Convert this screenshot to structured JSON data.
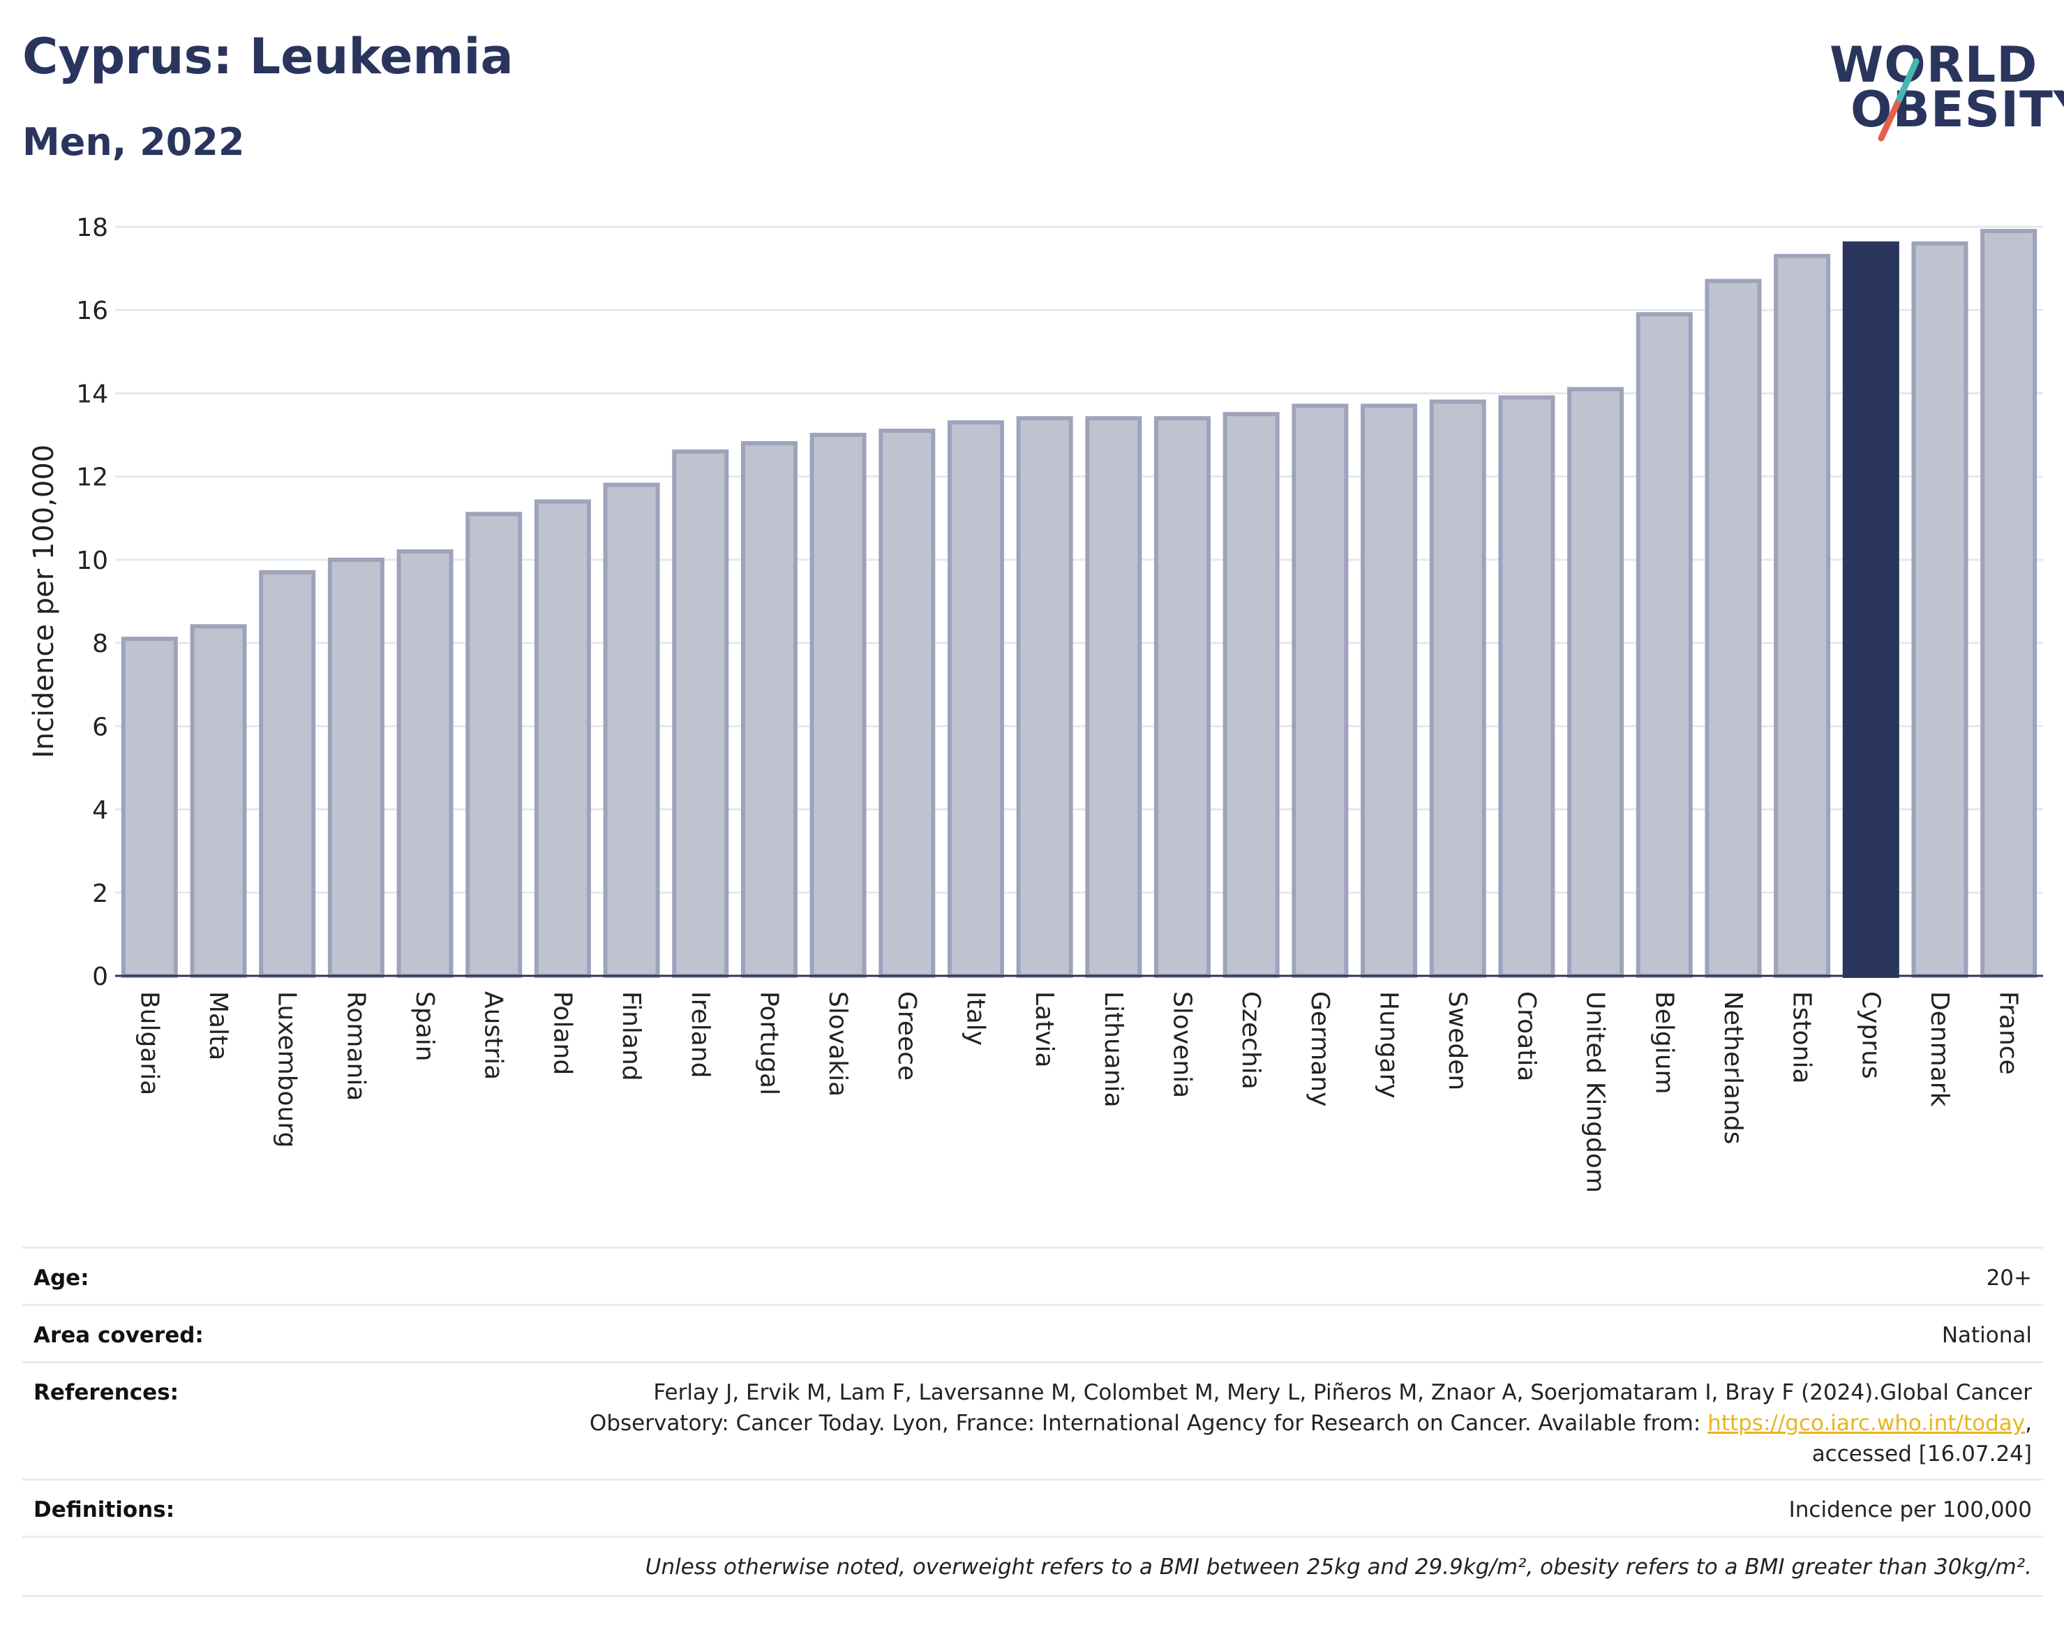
{
  "header": {
    "title": "Cyprus: Leukemia",
    "subtitle": "Men, 2022"
  },
  "logo": {
    "line1": "WORLD",
    "line2": "OBESITY",
    "slash_colors": [
      "#45b8b3",
      "#e35f4e"
    ]
  },
  "colors": {
    "bar_fill": "#bfc3d0",
    "bar_stroke": "#9ea3bb",
    "highlight": "#2a355e",
    "grid": "#e6e8ee"
  },
  "chart_data": {
    "type": "bar",
    "ylabel": "Incidence per 100,000",
    "ylim": [
      0,
      18
    ],
    "yticks": [
      0,
      2,
      4,
      6,
      8,
      10,
      12,
      14,
      16,
      18
    ],
    "grid": true,
    "highlight": "Cyprus",
    "categories": [
      "Bulgaria",
      "Malta",
      "Luxembourg",
      "Romania",
      "Spain",
      "Austria",
      "Poland",
      "Finland",
      "Ireland",
      "Portugal",
      "Slovakia",
      "Greece",
      "Italy",
      "Latvia",
      "Lithuania",
      "Slovenia",
      "Czechia",
      "Germany",
      "Hungary",
      "Sweden",
      "Croatia",
      "United Kingdom",
      "Belgium",
      "Netherlands",
      "Estonia",
      "Cyprus",
      "Denmark",
      "France"
    ],
    "values": [
      8.1,
      8.4,
      9.7,
      10.0,
      10.2,
      11.1,
      11.4,
      11.8,
      12.6,
      12.8,
      13.0,
      13.1,
      13.3,
      13.4,
      13.4,
      13.4,
      13.5,
      13.7,
      13.7,
      13.8,
      13.9,
      14.1,
      15.9,
      16.7,
      17.3,
      17.6,
      17.6,
      17.9
    ]
  },
  "meta": {
    "age_label": "Age:",
    "age_value": "20+",
    "area_label": "Area covered:",
    "area_value": "National",
    "references_label": "References:",
    "references_line1": "Ferlay J, Ervik M, Lam F, Laversanne M, Colombet M, Mery L, Piñeros M, Znaor A, Soerjomataram I, Bray F (2024).Global Cancer",
    "references_line2": "Observatory: Cancer Today. Lyon, France: International Agency for Research on Cancer. Available from: ",
    "references_link": "https://gco.iarc.who.int/today",
    "references_line2_end": ",",
    "references_line3": "accessed [16.07.24]",
    "definitions_label": "Definitions:",
    "definitions_value": "Incidence per 100,000",
    "note": "Unless otherwise noted, overweight refers to a BMI between 25kg and 29.9kg/m², obesity refers to a BMI greater than 30kg/m²."
  }
}
